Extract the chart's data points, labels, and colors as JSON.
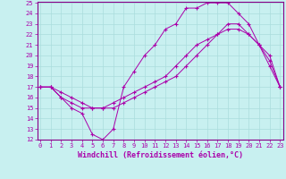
{
  "xlabel": "Windchill (Refroidissement éolien,°C)",
  "bg_color": "#c8f0f0",
  "line_color": "#aa00aa",
  "grid_color": "#aadddd",
  "spine_color": "#880088",
  "ylim": [
    12,
    25
  ],
  "xlim": [
    0,
    23
  ],
  "yticks": [
    12,
    13,
    14,
    15,
    16,
    17,
    18,
    19,
    20,
    21,
    22,
    23,
    24,
    25
  ],
  "xticks": [
    0,
    1,
    2,
    3,
    4,
    5,
    6,
    7,
    8,
    9,
    10,
    11,
    12,
    13,
    14,
    15,
    16,
    17,
    18,
    19,
    20,
    21,
    22,
    23
  ],
  "line1_x": [
    0,
    1,
    2,
    3,
    4,
    5,
    6,
    7,
    8,
    9,
    10,
    11,
    12,
    13,
    14,
    15,
    16,
    17,
    18,
    19,
    20,
    21,
    22,
    23
  ],
  "line1_y": [
    17,
    17,
    16,
    15,
    14.5,
    12.5,
    12,
    13,
    17,
    18.5,
    20,
    21,
    22.5,
    23,
    24.5,
    24.5,
    25,
    25,
    25,
    24,
    23,
    21,
    19.5,
    17
  ],
  "line2_x": [
    0,
    1,
    2,
    3,
    4,
    5,
    6,
    7,
    8,
    9,
    10,
    11,
    12,
    13,
    14,
    15,
    16,
    17,
    18,
    19,
    20,
    21,
    22,
    23
  ],
  "line2_y": [
    17,
    17,
    16,
    15.5,
    15,
    15,
    15,
    15,
    15.5,
    16,
    16.5,
    17,
    17.5,
    18,
    19,
    20,
    21,
    22,
    23,
    23,
    22,
    21,
    20,
    17
  ],
  "line3_x": [
    0,
    1,
    2,
    3,
    4,
    5,
    6,
    7,
    8,
    9,
    10,
    11,
    12,
    13,
    14,
    15,
    16,
    17,
    18,
    19,
    20,
    21,
    22,
    23
  ],
  "line3_y": [
    17,
    17,
    16.5,
    16,
    15.5,
    15,
    15,
    15.5,
    16,
    16.5,
    17,
    17.5,
    18,
    19,
    20,
    21,
    21.5,
    22,
    22.5,
    22.5,
    22,
    21,
    19,
    17
  ],
  "tick_fontsize": 5,
  "xlabel_fontsize": 6
}
